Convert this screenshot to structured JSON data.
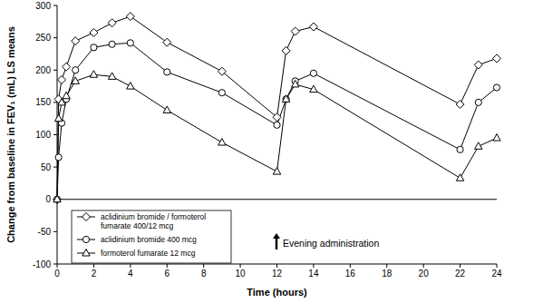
{
  "chart_data": {
    "type": "line",
    "x_label": "Time (hours)",
    "y_label": "Change from baseline in FEV₁ (mL) LS means",
    "annotation": "Evening administration",
    "x": [
      0,
      0.08,
      0.25,
      0.5,
      1,
      2,
      3,
      4,
      6,
      9,
      12,
      12.5,
      13,
      14,
      22,
      23,
      24
    ],
    "series": [
      {
        "name": "aclidinium bromide / formoterol fumarate 400/12 mcg",
        "color": "#000000",
        "marker": "diamond",
        "values": [
          0,
          155,
          185,
          205,
          245,
          258,
          273,
          283,
          243,
          198,
          127,
          230,
          260,
          267,
          147,
          208,
          218
        ]
      },
      {
        "name": "aclidinium bromide 400 mcg",
        "color": "#000000",
        "marker": "circle",
        "values": [
          0,
          65,
          118,
          155,
          200,
          235,
          240,
          242,
          197,
          165,
          115,
          155,
          183,
          195,
          77,
          150,
          173
        ]
      },
      {
        "name": "formoterol fumarate 12 mcg",
        "color": "#000000",
        "marker": "triangle",
        "values": [
          0,
          125,
          150,
          160,
          183,
          193,
          190,
          175,
          138,
          88,
          43,
          155,
          178,
          170,
          33,
          82,
          95
        ]
      }
    ],
    "xlim": [
      0,
      24
    ],
    "xticks": [
      0,
      2,
      4,
      6,
      8,
      10,
      12,
      14,
      16,
      18,
      20,
      22,
      24
    ],
    "ylim": [
      -100,
      300
    ],
    "yticks": [
      -100,
      -50,
      0,
      50,
      100,
      150,
      200,
      250,
      300
    ],
    "reference_lines": [
      0
    ],
    "grid": false,
    "legend": "lower left"
  }
}
